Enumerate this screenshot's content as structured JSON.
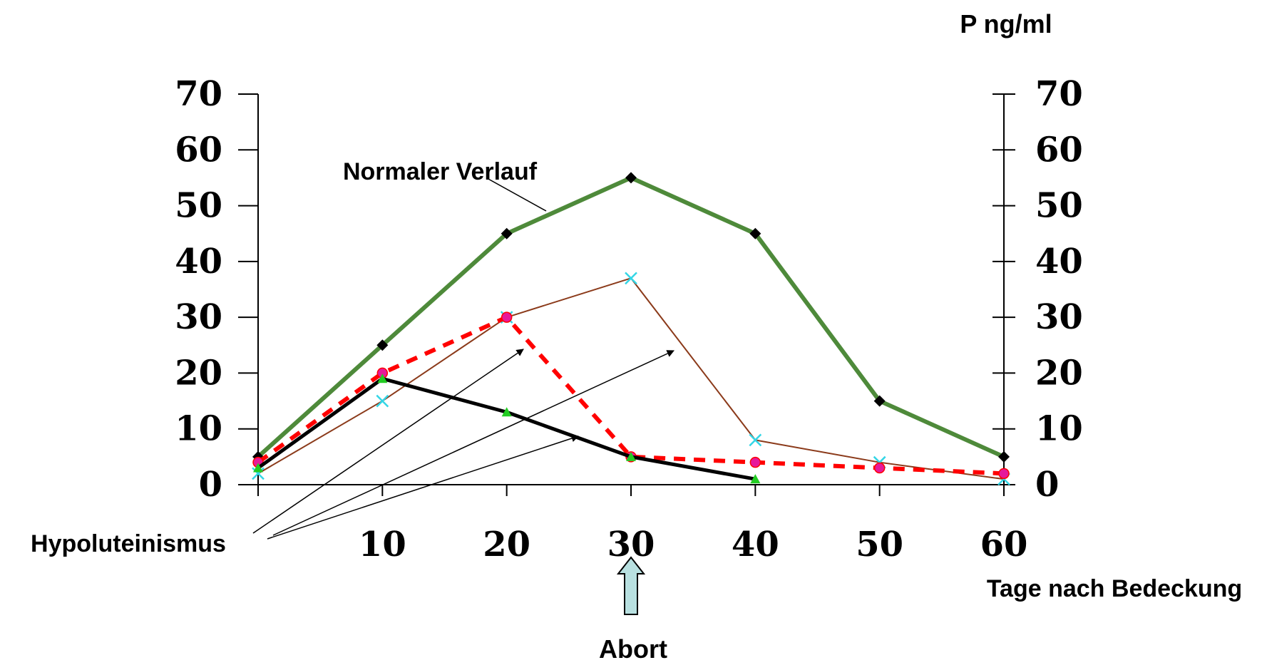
{
  "chart_data": {
    "type": "line",
    "y_unit_label": "P ng/ml",
    "xlabel": "Tage nach Bedeckung",
    "x_ticks": [
      10,
      20,
      30,
      40,
      50,
      60
    ],
    "y_ticks": [
      0,
      10,
      20,
      30,
      40,
      50,
      60,
      70
    ],
    "xlim": [
      0,
      60
    ],
    "ylim": [
      0,
      70
    ],
    "grid": false,
    "legend": "none",
    "series": [
      {
        "id": "normal",
        "color": "#4e8a3a",
        "marker": "diamond",
        "marker_color": "#000000",
        "dash": "solid",
        "points": [
          [
            0,
            5
          ],
          [
            10,
            25
          ],
          [
            20,
            45
          ],
          [
            30,
            55
          ],
          [
            40,
            45
          ],
          [
            50,
            15
          ],
          [
            60,
            5
          ]
        ]
      },
      {
        "id": "brown",
        "color": "#8b3a1a",
        "marker": "x",
        "marker_color": "#33d6e6",
        "dash": "solid",
        "points": [
          [
            0,
            2
          ],
          [
            10,
            15
          ],
          [
            20,
            30
          ],
          [
            30,
            37
          ],
          [
            40,
            8
          ],
          [
            50,
            4
          ],
          [
            60,
            1
          ]
        ]
      },
      {
        "id": "red-dashed",
        "color": "#ff0000",
        "marker": "circle",
        "marker_color": "#e6199a",
        "dash": "dashed",
        "points": [
          [
            0,
            4
          ],
          [
            10,
            20
          ],
          [
            20,
            30
          ],
          [
            30,
            5
          ],
          [
            40,
            4
          ],
          [
            50,
            3
          ],
          [
            60,
            2
          ]
        ]
      },
      {
        "id": "black",
        "color": "#000000",
        "marker": "triangle",
        "marker_color": "#22cc22",
        "dash": "solid",
        "points": [
          [
            0,
            3
          ],
          [
            10,
            19
          ],
          [
            20,
            13
          ],
          [
            30,
            5
          ],
          [
            40,
            1
          ]
        ]
      }
    ],
    "annotations": {
      "normal": "Normaler Verlauf",
      "hypo": "Hypoluteinismus",
      "abort": "Abort"
    },
    "abort_x": 30
  }
}
